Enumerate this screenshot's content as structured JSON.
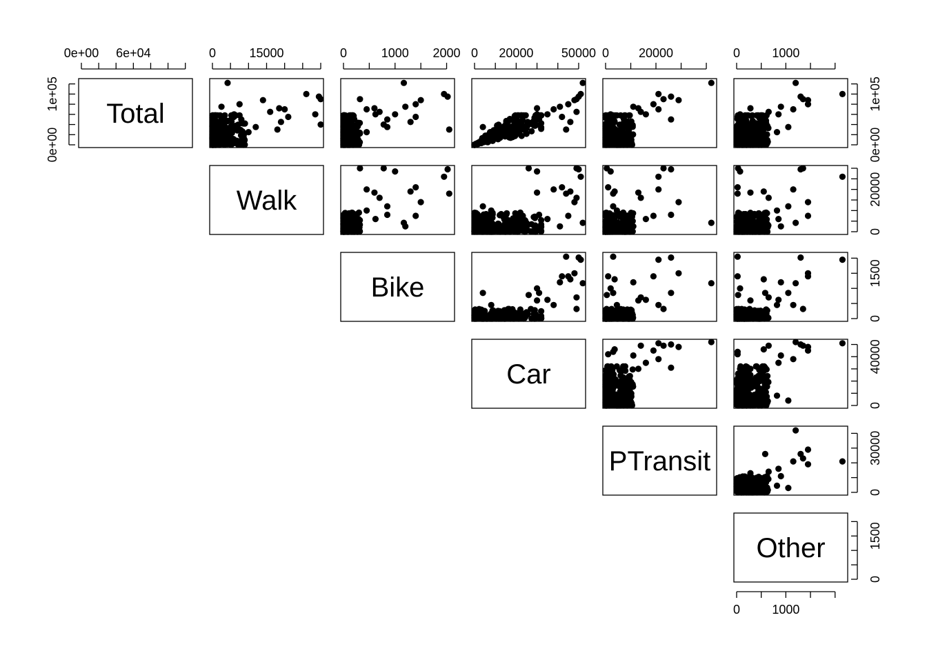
{
  "chart_data": {
    "type": "scatter",
    "subtype": "scatterplot-matrix",
    "variables": [
      "Total",
      "Walk",
      "Bike",
      "Car",
      "PTransit",
      "Other"
    ],
    "layout": "upper-triangle",
    "ranges": {
      "Total": [
        0,
        125000
      ],
      "Walk": [
        0,
        30000
      ],
      "Bike": [
        0,
        2100
      ],
      "Car": [
        0,
        52000
      ],
      "PTransit": [
        0,
        43000
      ],
      "Other": [
        0,
        2200
      ]
    },
    "ticks": {
      "Total": {
        "labels": [
          {
            "v": 0,
            "t": "0e+00"
          },
          {
            "v": 60000,
            "t": "6e+04"
          },
          {
            "v": 100000,
            "t": "1e+05"
          }
        ],
        "minor": [
          0,
          20000,
          40000,
          60000,
          80000,
          100000,
          120000
        ]
      },
      "Walk": {
        "labels": [
          {
            "v": 0,
            "t": "0"
          },
          {
            "v": 15000,
            "t": "15000"
          },
          {
            "v": 20000,
            "t": "20000"
          }
        ],
        "minor": [
          0,
          5000,
          10000,
          15000,
          20000,
          25000,
          30000
        ]
      },
      "Bike": {
        "labels": [
          {
            "v": 0,
            "t": "0"
          },
          {
            "v": 1000,
            "t": "1000"
          },
          {
            "v": 2000,
            "t": "2000"
          },
          {
            "v": 1500,
            "t": "1500"
          }
        ],
        "minor": [
          0,
          500,
          1000,
          1500,
          2000
        ]
      },
      "Car": {
        "labels": [
          {
            "v": 0,
            "t": "0"
          },
          {
            "v": 20000,
            "t": "20000"
          },
          {
            "v": 50000,
            "t": "50000"
          },
          {
            "v": 40000,
            "t": "40000"
          }
        ],
        "minor": [
          0,
          10000,
          20000,
          30000,
          40000,
          50000
        ]
      },
      "PTransit": {
        "labels": [
          {
            "v": 0,
            "t": "0"
          },
          {
            "v": 20000,
            "t": "20000"
          },
          {
            "v": 30000,
            "t": "30000"
          }
        ],
        "minor": [
          0,
          10000,
          20000,
          30000,
          40000
        ]
      },
      "Other": {
        "labels": [
          {
            "v": 0,
            "t": "0"
          },
          {
            "v": 1000,
            "t": "1000"
          },
          {
            "v": 1500,
            "t": "1500"
          }
        ],
        "minor": [
          0,
          500,
          1000,
          1500,
          2000
        ]
      }
    },
    "top_axis_labels": {
      "Total": [
        "0e+00",
        "6e+04"
      ],
      "Walk": [
        "0",
        "15000"
      ],
      "Bike": [
        "0",
        "1000",
        "2000"
      ],
      "Car": [
        "0",
        "20000",
        "50000"
      ],
      "PTransit": [
        "0",
        "20000"
      ],
      "Other": [
        "0",
        "1000"
      ]
    },
    "right_axis_labels": {
      "Total": [
        "0e+00",
        "1e+05"
      ],
      "Walk": [
        "0",
        "20000"
      ],
      "Bike": [
        "0",
        "1500"
      ],
      "Car": [
        "0",
        "40000"
      ],
      "PTransit": [
        "0",
        "30000"
      ],
      "Other": [
        "0",
        "1500"
      ]
    },
    "bottom_axis_labels": {
      "Other": [
        "0",
        "1000"
      ]
    },
    "outliers": [
      {
        "Total": 122000,
        "Walk": 4200,
        "Bike": 1170,
        "Car": 52000,
        "PTransit": 42000,
        "Other": 1200
      },
      {
        "Total": 100000,
        "Walk": 26000,
        "Bike": 1950,
        "Car": 51000,
        "PTransit": 21000,
        "Other": 2150
      },
      {
        "Total": 95000,
        "Walk": 29500,
        "Bike": 2020,
        "Car": 50000,
        "PTransit": 26000,
        "Other": 1300
      },
      {
        "Total": 90000,
        "Walk": 30000,
        "Bike": 320,
        "Car": 49000,
        "PTransit": 23000,
        "Other": 1350
      },
      {
        "Total": 88000,
        "Walk": 14000,
        "Bike": 1500,
        "Car": 48000,
        "PTransit": 29000,
        "Other": 1450
      },
      {
        "Total": 80000,
        "Walk": 7500,
        "Bike": 1400,
        "Car": 45000,
        "PTransit": 19000,
        "Other": 1450
      },
      {
        "Total": 75000,
        "Walk": 2500,
        "Bike": 1200,
        "Car": 41000,
        "PTransit": 11000,
        "Other": 900
      },
      {
        "Total": 70000,
        "Walk": 20000,
        "Bike": 450,
        "Car": 38000,
        "PTransit": 21000,
        "Other": 1150
      },
      {
        "Total": 40000,
        "Walk": 30000,
        "Bike": 780,
        "Car": 26000,
        "PTransit": 500,
        "Other": 30
      },
      {
        "Total": 60000,
        "Walk": 28500,
        "Bike": 1000,
        "Car": 30000,
        "PTransit": 2000,
        "Other": 70
      },
      {
        "Total": 30000,
        "Walk": 18000,
        "Bike": 2050,
        "Car": 44000,
        "PTransit": 3000,
        "Other": 20
      },
      {
        "Total": 45000,
        "Walk": 19000,
        "Bike": 1300,
        "Car": 46000,
        "PTransit": 3600,
        "Other": 550
      },
      {
        "Total": 55000,
        "Walk": 21000,
        "Bike": 1400,
        "Car": 42000,
        "PTransit": 1000,
        "Other": 20
      },
      {
        "Total": 65000,
        "Walk": 16000,
        "Bike": 700,
        "Car": 49000,
        "PTransit": 14000,
        "Other": 650
      },
      {
        "Total": 72000,
        "Walk": 18500,
        "Bike": 600,
        "Car": 30000,
        "PTransit": 13000,
        "Other": 280
      },
      {
        "Total": 50000,
        "Walk": 8000,
        "Bike": 850,
        "Car": 31000,
        "PTransit": 26000,
        "Other": 580
      },
      {
        "Total": 35000,
        "Walk": 12000,
        "Bike": 850,
        "Car": 4000,
        "PTransit": 3000,
        "Other": 1050
      },
      {
        "Total": 25000,
        "Walk": 10000,
        "Bike": 450,
        "Car": 8000,
        "PTransit": 4500,
        "Other": 820
      },
      {
        "Total": 60000,
        "Walk": 6000,
        "Bike": 620,
        "Car": 35000,
        "PTransit": 16000,
        "Other": 850
      },
      {
        "Total": 42000,
        "Walk": 9000,
        "Bike": 300,
        "Car": 22000,
        "PTransit": 7000,
        "Other": 600
      }
    ],
    "bulk": {
      "n": 240,
      "Total_max": 58000,
      "Walk_max": 9000,
      "Bike_max": 320,
      "Car_max": 32000,
      "PTransit_max": 11000,
      "Other_max": 650
    }
  }
}
